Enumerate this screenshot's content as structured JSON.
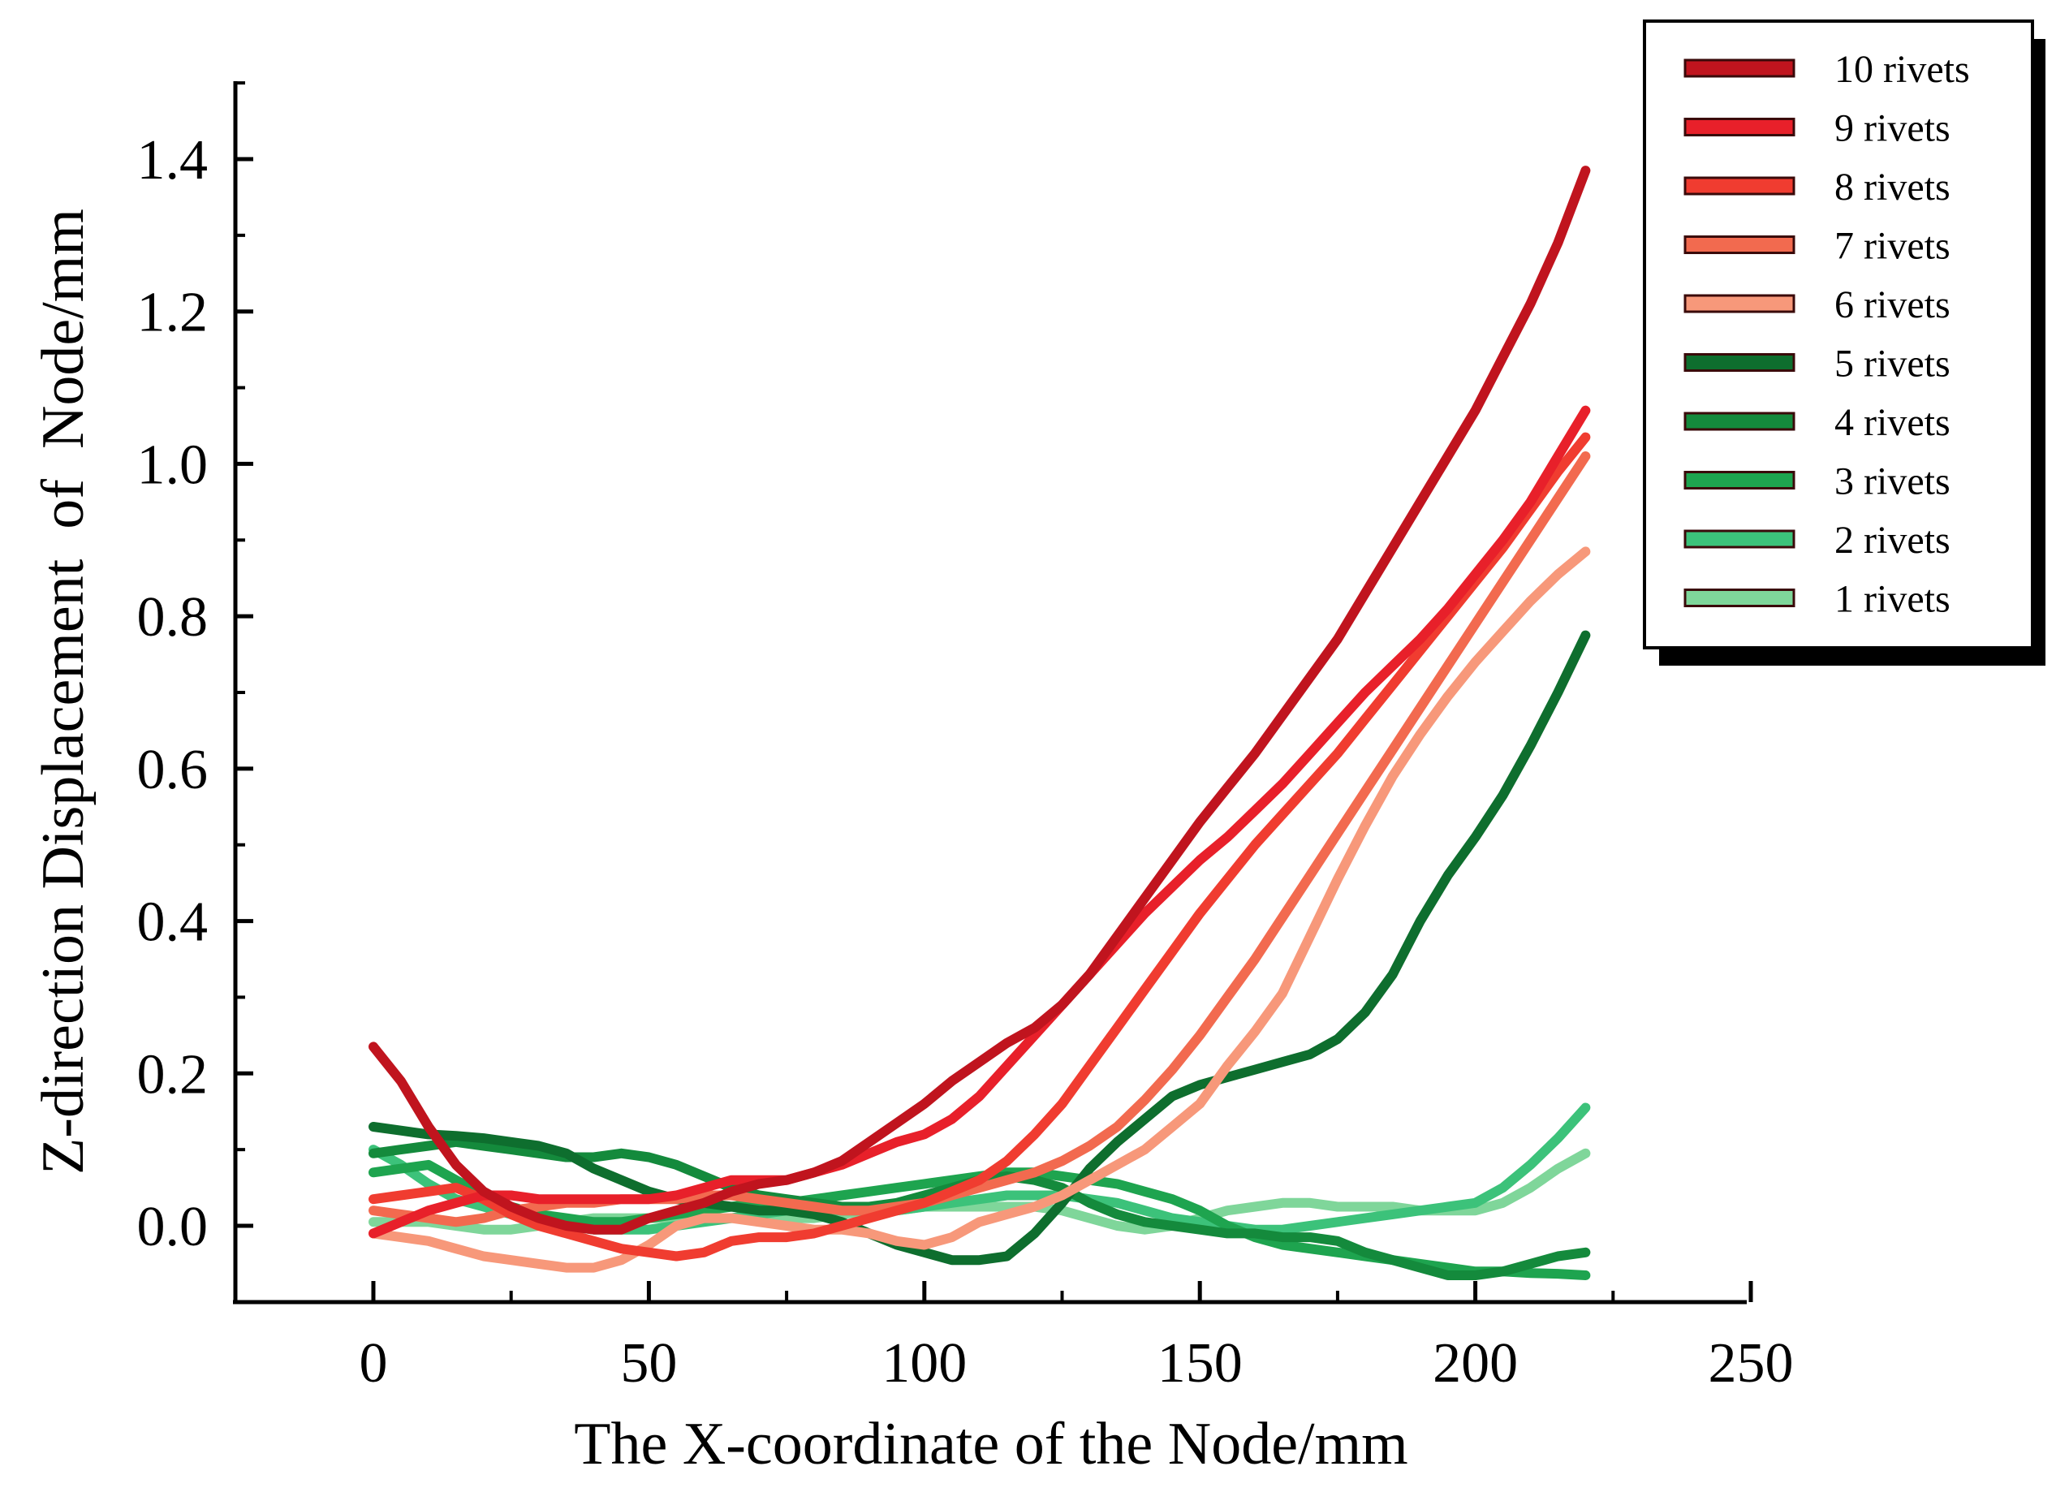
{
  "chart_data": {
    "type": "line",
    "title": "",
    "xlabel": "The X-coordinate of the Node/mm",
    "ylabel": "Z-direction Displacement  of  Node/mm",
    "xlim": [
      -25,
      250
    ],
    "ylim": [
      -0.1,
      1.5
    ],
    "xticks": [
      0,
      50,
      100,
      150,
      200,
      250
    ],
    "yticks": [
      0.0,
      0.2,
      0.4,
      0.6,
      0.8,
      1.0,
      1.2,
      1.4
    ],
    "xtick_labels": [
      "0",
      "50",
      "100",
      "150",
      "200",
      "250"
    ],
    "ytick_labels": [
      "0.0",
      "0.2",
      "0.4",
      "0.6",
      "0.8",
      "1.0",
      "1.2",
      "1.4"
    ],
    "legend_position": "top-right",
    "grid": false,
    "series": [
      {
        "name": "10 rivets",
        "color": "#c0141e",
        "x": [
          0,
          5,
          10,
          15,
          20,
          25,
          30,
          35,
          40,
          45,
          50,
          55,
          60,
          65,
          70,
          75,
          80,
          85,
          90,
          95,
          100,
          105,
          110,
          115,
          120,
          125,
          130,
          135,
          140,
          145,
          150,
          155,
          160,
          165,
          170,
          175,
          180,
          185,
          190,
          195,
          200,
          205,
          210,
          215,
          220
        ],
        "y": [
          0.235,
          0.19,
          0.13,
          0.08,
          0.045,
          0.025,
          0.01,
          0.0,
          -0.005,
          -0.005,
          0.01,
          0.02,
          0.03,
          0.045,
          0.055,
          0.06,
          0.07,
          0.085,
          0.11,
          0.135,
          0.16,
          0.19,
          0.215,
          0.24,
          0.26,
          0.29,
          0.33,
          0.38,
          0.43,
          0.48,
          0.53,
          0.575,
          0.62,
          0.67,
          0.72,
          0.77,
          0.83,
          0.89,
          0.95,
          1.01,
          1.07,
          1.14,
          1.21,
          1.29,
          1.385
        ]
      },
      {
        "name": "9 rivets",
        "color": "#e8202a",
        "x": [
          0,
          5,
          10,
          15,
          20,
          25,
          30,
          35,
          40,
          45,
          50,
          55,
          60,
          65,
          70,
          75,
          80,
          85,
          90,
          95,
          100,
          105,
          110,
          115,
          120,
          125,
          130,
          135,
          140,
          145,
          150,
          155,
          160,
          165,
          170,
          175,
          180,
          185,
          190,
          195,
          200,
          205,
          210,
          215,
          220
        ],
        "y": [
          -0.01,
          0.005,
          0.02,
          0.03,
          0.04,
          0.04,
          0.035,
          0.035,
          0.035,
          0.035,
          0.035,
          0.04,
          0.05,
          0.06,
          0.06,
          0.06,
          0.07,
          0.08,
          0.095,
          0.11,
          0.12,
          0.14,
          0.17,
          0.21,
          0.25,
          0.29,
          0.33,
          0.37,
          0.41,
          0.445,
          0.48,
          0.51,
          0.545,
          0.58,
          0.62,
          0.66,
          0.7,
          0.735,
          0.77,
          0.81,
          0.855,
          0.9,
          0.95,
          1.01,
          1.07
        ]
      },
      {
        "name": "8 rivets",
        "color": "#f03c30",
        "x": [
          0,
          5,
          10,
          15,
          20,
          25,
          30,
          35,
          40,
          45,
          50,
          55,
          60,
          65,
          70,
          75,
          80,
          85,
          90,
          95,
          100,
          105,
          110,
          115,
          120,
          125,
          130,
          135,
          140,
          145,
          150,
          155,
          160,
          165,
          170,
          175,
          180,
          185,
          190,
          195,
          200,
          205,
          210,
          215,
          220
        ],
        "y": [
          0.035,
          0.04,
          0.045,
          0.05,
          0.035,
          0.015,
          0.0,
          -0.01,
          -0.02,
          -0.03,
          -0.035,
          -0.04,
          -0.035,
          -0.02,
          -0.015,
          -0.015,
          -0.01,
          0.0,
          0.01,
          0.02,
          0.03,
          0.045,
          0.06,
          0.085,
          0.12,
          0.16,
          0.21,
          0.26,
          0.31,
          0.36,
          0.41,
          0.455,
          0.5,
          0.54,
          0.58,
          0.62,
          0.665,
          0.71,
          0.755,
          0.8,
          0.845,
          0.89,
          0.94,
          0.99,
          1.035
        ]
      },
      {
        "name": "7 rivets",
        "color": "#f26a4f",
        "x": [
          0,
          5,
          10,
          15,
          20,
          25,
          30,
          35,
          40,
          45,
          50,
          55,
          60,
          65,
          70,
          75,
          80,
          85,
          90,
          95,
          100,
          105,
          110,
          115,
          120,
          125,
          130,
          135,
          140,
          145,
          150,
          155,
          160,
          165,
          170,
          175,
          180,
          185,
          190,
          195,
          200,
          205,
          210,
          215,
          220
        ],
        "y": [
          0.02,
          0.015,
          0.01,
          0.005,
          0.01,
          0.02,
          0.025,
          0.03,
          0.03,
          0.035,
          0.035,
          0.035,
          0.04,
          0.04,
          0.035,
          0.03,
          0.025,
          0.02,
          0.02,
          0.025,
          0.03,
          0.04,
          0.05,
          0.06,
          0.07,
          0.085,
          0.105,
          0.13,
          0.165,
          0.205,
          0.25,
          0.3,
          0.35,
          0.405,
          0.46,
          0.515,
          0.57,
          0.625,
          0.68,
          0.735,
          0.79,
          0.845,
          0.9,
          0.955,
          1.01
        ]
      },
      {
        "name": "6 rivets",
        "color": "#f7987a",
        "x": [
          0,
          5,
          10,
          15,
          20,
          25,
          30,
          35,
          40,
          45,
          50,
          55,
          60,
          65,
          70,
          75,
          80,
          85,
          90,
          95,
          100,
          105,
          110,
          115,
          120,
          125,
          130,
          135,
          140,
          145,
          150,
          155,
          160,
          165,
          170,
          175,
          180,
          185,
          190,
          195,
          200,
          205,
          210,
          215,
          220
        ],
        "y": [
          -0.01,
          -0.015,
          -0.02,
          -0.03,
          -0.04,
          -0.045,
          -0.05,
          -0.055,
          -0.055,
          -0.045,
          -0.025,
          0.0,
          0.01,
          0.01,
          0.005,
          0.0,
          -0.005,
          -0.005,
          -0.01,
          -0.02,
          -0.025,
          -0.015,
          0.005,
          0.015,
          0.025,
          0.04,
          0.06,
          0.08,
          0.1,
          0.13,
          0.16,
          0.21,
          0.255,
          0.305,
          0.38,
          0.455,
          0.525,
          0.59,
          0.645,
          0.695,
          0.74,
          0.78,
          0.82,
          0.855,
          0.885
        ]
      },
      {
        "name": "5 rivets",
        "color": "#0e6e2e",
        "x": [
          0,
          5,
          10,
          15,
          20,
          25,
          30,
          35,
          40,
          45,
          50,
          55,
          60,
          65,
          70,
          75,
          80,
          85,
          90,
          95,
          100,
          105,
          110,
          115,
          120,
          125,
          130,
          135,
          140,
          145,
          150,
          155,
          160,
          165,
          170,
          175,
          180,
          185,
          190,
          195,
          200,
          205,
          210,
          215,
          220
        ],
        "y": [
          0.13,
          0.125,
          0.12,
          0.118,
          0.115,
          0.11,
          0.105,
          0.095,
          0.075,
          0.06,
          0.045,
          0.035,
          0.03,
          0.025,
          0.02,
          0.02,
          0.015,
          0.005,
          -0.01,
          -0.025,
          -0.035,
          -0.045,
          -0.045,
          -0.04,
          -0.01,
          0.03,
          0.075,
          0.11,
          0.14,
          0.17,
          0.185,
          0.195,
          0.205,
          0.215,
          0.225,
          0.245,
          0.28,
          0.33,
          0.4,
          0.46,
          0.51,
          0.565,
          0.63,
          0.7,
          0.775
        ]
      },
      {
        "name": "4 rivets",
        "color": "#148a3c",
        "x": [
          0,
          5,
          10,
          15,
          20,
          25,
          30,
          35,
          40,
          45,
          50,
          55,
          60,
          65,
          70,
          75,
          80,
          85,
          90,
          95,
          100,
          105,
          110,
          115,
          120,
          125,
          130,
          135,
          140,
          145,
          150,
          155,
          160,
          165,
          170,
          175,
          180,
          185,
          190,
          195,
          200,
          205,
          210,
          215,
          220
        ],
        "y": [
          0.095,
          0.1,
          0.105,
          0.11,
          0.105,
          0.1,
          0.095,
          0.09,
          0.09,
          0.095,
          0.09,
          0.08,
          0.065,
          0.05,
          0.04,
          0.035,
          0.03,
          0.025,
          0.025,
          0.03,
          0.04,
          0.05,
          0.06,
          0.065,
          0.06,
          0.05,
          0.03,
          0.015,
          0.005,
          0.0,
          -0.005,
          -0.01,
          -0.01,
          -0.015,
          -0.015,
          -0.02,
          -0.035,
          -0.045,
          -0.055,
          -0.065,
          -0.065,
          -0.06,
          -0.05,
          -0.04,
          -0.035
        ]
      },
      {
        "name": "3 rivets",
        "color": "#1ea44f",
        "x": [
          0,
          5,
          10,
          15,
          20,
          25,
          30,
          35,
          40,
          45,
          50,
          55,
          60,
          65,
          70,
          75,
          80,
          85,
          90,
          95,
          100,
          105,
          110,
          115,
          120,
          125,
          130,
          135,
          140,
          145,
          150,
          155,
          160,
          165,
          170,
          175,
          180,
          185,
          190,
          195,
          200,
          205,
          210,
          215,
          220
        ],
        "y": [
          0.07,
          0.075,
          0.08,
          0.06,
          0.04,
          0.025,
          0.015,
          0.01,
          0.005,
          0.005,
          0.01,
          0.015,
          0.02,
          0.025,
          0.03,
          0.03,
          0.035,
          0.04,
          0.045,
          0.05,
          0.055,
          0.06,
          0.065,
          0.07,
          0.07,
          0.065,
          0.06,
          0.055,
          0.045,
          0.035,
          0.02,
          0.0,
          -0.015,
          -0.025,
          -0.03,
          -0.035,
          -0.04,
          -0.045,
          -0.05,
          -0.055,
          -0.06,
          -0.06,
          -0.062,
          -0.063,
          -0.065
        ]
      },
      {
        "name": "2 rivets",
        "color": "#3cc27a",
        "x": [
          0,
          5,
          10,
          15,
          20,
          25,
          30,
          35,
          40,
          45,
          50,
          55,
          60,
          65,
          70,
          75,
          80,
          85,
          90,
          95,
          100,
          105,
          110,
          115,
          120,
          125,
          130,
          135,
          140,
          145,
          150,
          155,
          160,
          165,
          170,
          175,
          180,
          185,
          190,
          195,
          200,
          205,
          210,
          215,
          220
        ],
        "y": [
          0.1,
          0.08,
          0.055,
          0.035,
          0.025,
          0.015,
          0.005,
          0.0,
          -0.005,
          -0.005,
          -0.005,
          0.0,
          0.005,
          0.01,
          0.015,
          0.02,
          0.02,
          0.02,
          0.02,
          0.02,
          0.025,
          0.03,
          0.035,
          0.04,
          0.04,
          0.04,
          0.035,
          0.03,
          0.02,
          0.01,
          0.005,
          0.0,
          -0.005,
          -0.005,
          0.0,
          0.005,
          0.01,
          0.015,
          0.02,
          0.025,
          0.03,
          0.05,
          0.08,
          0.115,
          0.155
        ]
      },
      {
        "name": "1 rivets",
        "color": "#7fd69a",
        "x": [
          0,
          5,
          10,
          15,
          20,
          25,
          30,
          35,
          40,
          45,
          50,
          55,
          60,
          65,
          70,
          75,
          80,
          85,
          90,
          95,
          100,
          105,
          110,
          115,
          120,
          125,
          130,
          135,
          140,
          145,
          150,
          155,
          160,
          165,
          170,
          175,
          180,
          185,
          190,
          195,
          200,
          205,
          210,
          215,
          220
        ],
        "y": [
          0.005,
          0.005,
          0.005,
          0.0,
          -0.005,
          -0.005,
          0.0,
          0.005,
          0.01,
          0.01,
          0.01,
          0.01,
          0.01,
          0.01,
          0.01,
          0.01,
          0.01,
          0.015,
          0.02,
          0.02,
          0.025,
          0.025,
          0.025,
          0.025,
          0.025,
          0.02,
          0.01,
          0.0,
          -0.005,
          0.0,
          0.01,
          0.02,
          0.025,
          0.03,
          0.03,
          0.025,
          0.025,
          0.025,
          0.02,
          0.02,
          0.02,
          0.03,
          0.05,
          0.075,
          0.095
        ]
      }
    ]
  }
}
